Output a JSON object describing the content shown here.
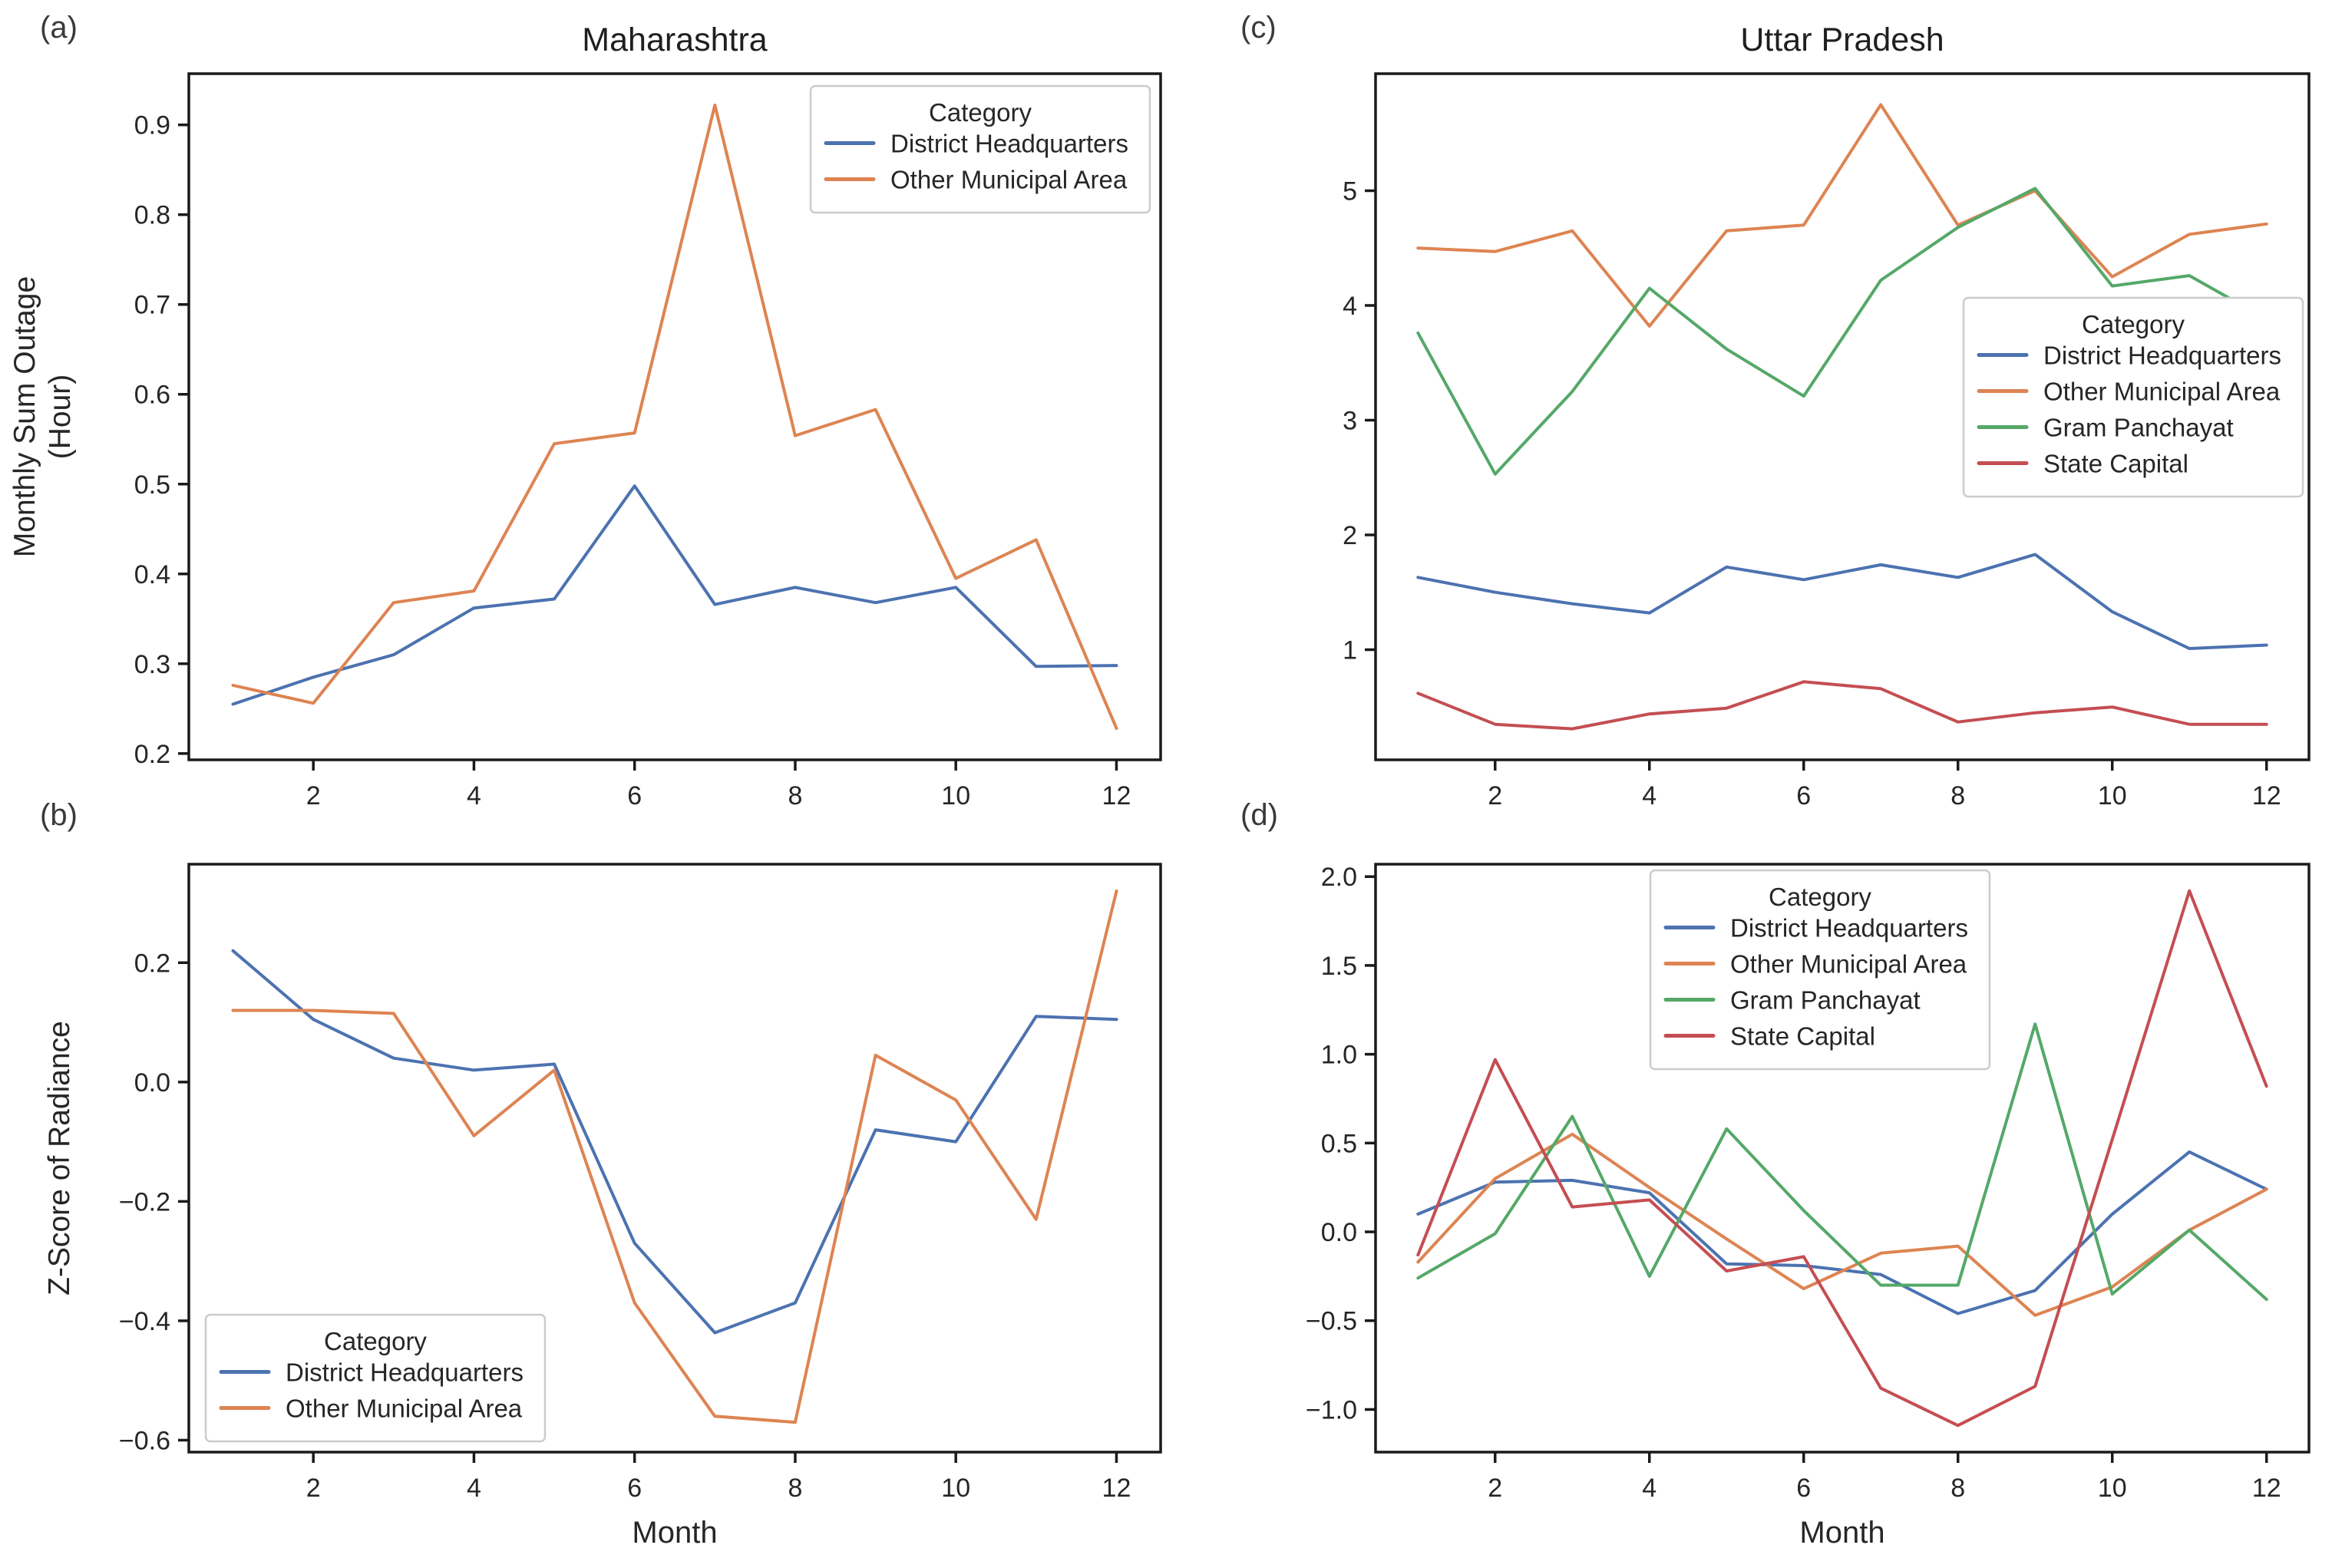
{
  "figure": {
    "background": "#ffffff",
    "legend_title": "Category",
    "categories": [
      "District Headquarters",
      "Other Municipal Area",
      "Gram Panchayat",
      "State Capital"
    ],
    "palette": {
      "District Headquarters": "#4c72b0",
      "Other Municipal Area": "#dd8452",
      "Gram Panchayat": "#55a868",
      "State Capital": "#c44e52"
    },
    "spine_color": "#1a1a1a",
    "tick_label_color": "#262626"
  },
  "chart_data": [
    {
      "id": "a",
      "panel_label": "(a)",
      "title": "Maharashtra",
      "type": "line",
      "ylabel_lines": [
        "Monthly Sum Outage",
        "(Hour)"
      ],
      "xlabel": "",
      "x": [
        1,
        2,
        3,
        4,
        5,
        6,
        7,
        8,
        9,
        10,
        11,
        12
      ],
      "xlim": [
        0.45,
        12.55
      ],
      "ylim": [
        0.193,
        0.957
      ],
      "xtick_vals": [
        2,
        4,
        6,
        8,
        10,
        12
      ],
      "xtick_labels": [
        "2",
        "4",
        "6",
        "8",
        "10",
        "12"
      ],
      "ytick_vals": [
        0.9,
        0.8,
        0.7,
        0.6,
        0.5,
        0.4,
        0.3,
        0.2
      ],
      "ytick_labels": [
        "0.9",
        "0.8",
        "0.7",
        "0.6",
        "0.5",
        "0.4",
        "0.3",
        "0.2"
      ],
      "legend_pos": "upper right",
      "series": [
        {
          "name": "District Headquarters",
          "values": [
            0.255,
            0.285,
            0.31,
            0.362,
            0.372,
            0.498,
            0.366,
            0.385,
            0.368,
            0.385,
            0.297,
            0.298
          ]
        },
        {
          "name": "Other Municipal Area",
          "values": [
            0.276,
            0.256,
            0.368,
            0.381,
            0.545,
            0.557,
            0.922,
            0.554,
            0.583,
            0.395,
            0.438,
            0.228
          ]
        }
      ]
    },
    {
      "id": "b",
      "panel_label": "(b)",
      "title": "",
      "type": "line",
      "ylabel": "Z-Score of Radiance",
      "xlabel": "Month",
      "x": [
        1,
        2,
        3,
        4,
        5,
        6,
        7,
        8,
        9,
        10,
        11,
        12
      ],
      "xlim": [
        0.45,
        12.55
      ],
      "ylim": [
        -0.62,
        0.365
      ],
      "xtick_vals": [
        2,
        4,
        6,
        8,
        10,
        12
      ],
      "xtick_labels": [
        "2",
        "4",
        "6",
        "8",
        "10",
        "12"
      ],
      "ytick_vals": [
        0.2,
        0.0,
        -0.2,
        -0.4,
        -0.6
      ],
      "ytick_labels": [
        "0.2",
        "0.0",
        "−0.2",
        "−0.4",
        "−0.6"
      ],
      "legend_pos": "lower left",
      "series": [
        {
          "name": "District Headquarters",
          "values": [
            0.22,
            0.105,
            0.04,
            0.02,
            0.03,
            -0.27,
            -0.42,
            -0.37,
            -0.08,
            -0.1,
            0.11,
            0.105
          ]
        },
        {
          "name": "Other Municipal Area",
          "values": [
            0.12,
            0.12,
            0.115,
            -0.09,
            0.02,
            -0.37,
            -0.56,
            -0.57,
            0.045,
            -0.03,
            -0.23,
            0.32
          ]
        }
      ]
    },
    {
      "id": "c",
      "panel_label": "(c)",
      "title": "Uttar Pradesh",
      "type": "line",
      "xlabel": "",
      "x": [
        1,
        2,
        3,
        4,
        5,
        6,
        7,
        8,
        9,
        10,
        11,
        12
      ],
      "xlim": [
        0.45,
        12.55
      ],
      "ylim": [
        0.04,
        6.02
      ],
      "xtick_vals": [
        2,
        4,
        6,
        8,
        10,
        12
      ],
      "xtick_labels": [
        "2",
        "4",
        "6",
        "8",
        "10",
        "12"
      ],
      "ytick_vals": [
        5,
        4,
        3,
        2,
        1
      ],
      "ytick_labels": [
        "5",
        "4",
        "3",
        "2",
        "1"
      ],
      "legend_pos": "center right",
      "series": [
        {
          "name": "District Headquarters",
          "values": [
            1.63,
            1.5,
            1.4,
            1.32,
            1.72,
            1.61,
            1.74,
            1.63,
            1.83,
            1.33,
            1.01,
            1.04
          ]
        },
        {
          "name": "Other Municipal Area",
          "values": [
            4.5,
            4.47,
            4.65,
            3.82,
            4.65,
            4.7,
            5.75,
            4.7,
            5.0,
            4.25,
            4.62,
            4.71
          ]
        },
        {
          "name": "Gram Panchayat",
          "values": [
            3.76,
            2.53,
            3.25,
            4.15,
            3.62,
            3.21,
            4.22,
            4.68,
            5.02,
            4.17,
            4.26,
            3.88
          ]
        },
        {
          "name": "State Capital",
          "values": [
            0.62,
            0.35,
            0.31,
            0.44,
            0.49,
            0.72,
            0.66,
            0.37,
            0.45,
            0.5,
            0.35,
            0.35
          ]
        }
      ]
    },
    {
      "id": "d",
      "panel_label": "(d)",
      "title": "",
      "type": "line",
      "xlabel": "Month",
      "x": [
        1,
        2,
        3,
        4,
        5,
        6,
        7,
        8,
        9,
        10,
        11,
        12
      ],
      "xlim": [
        0.45,
        12.55
      ],
      "ylim": [
        -1.24,
        2.07
      ],
      "xtick_vals": [
        2,
        4,
        6,
        8,
        10,
        12
      ],
      "xtick_labels": [
        "2",
        "4",
        "6",
        "8",
        "10",
        "12"
      ],
      "ytick_vals": [
        2.0,
        1.5,
        1.0,
        0.5,
        0.0,
        -0.5,
        -1.0
      ],
      "ytick_labels": [
        "2.0",
        "1.5",
        "1.0",
        "0.5",
        "0.0",
        "−0.5",
        "−1.0"
      ],
      "legend_pos": "upper left inset",
      "series": [
        {
          "name": "District Headquarters",
          "values": [
            0.1,
            0.28,
            0.29,
            0.22,
            -0.18,
            -0.19,
            -0.24,
            -0.46,
            -0.33,
            0.1,
            0.45,
            0.24
          ]
        },
        {
          "name": "Other Municipal Area",
          "values": [
            -0.17,
            0.3,
            0.55,
            0.25,
            -0.04,
            -0.32,
            -0.12,
            -0.08,
            -0.47,
            -0.31,
            0.01,
            0.24
          ]
        },
        {
          "name": "Gram Panchayat",
          "values": [
            -0.26,
            -0.01,
            0.65,
            -0.25,
            0.58,
            0.12,
            -0.3,
            -0.3,
            1.17,
            -0.35,
            0.01,
            -0.38
          ]
        },
        {
          "name": "State Capital",
          "values": [
            -0.13,
            0.97,
            0.14,
            0.18,
            -0.22,
            -0.14,
            -0.88,
            -1.09,
            -0.87,
            0.52,
            1.92,
            0.82
          ]
        }
      ]
    }
  ]
}
